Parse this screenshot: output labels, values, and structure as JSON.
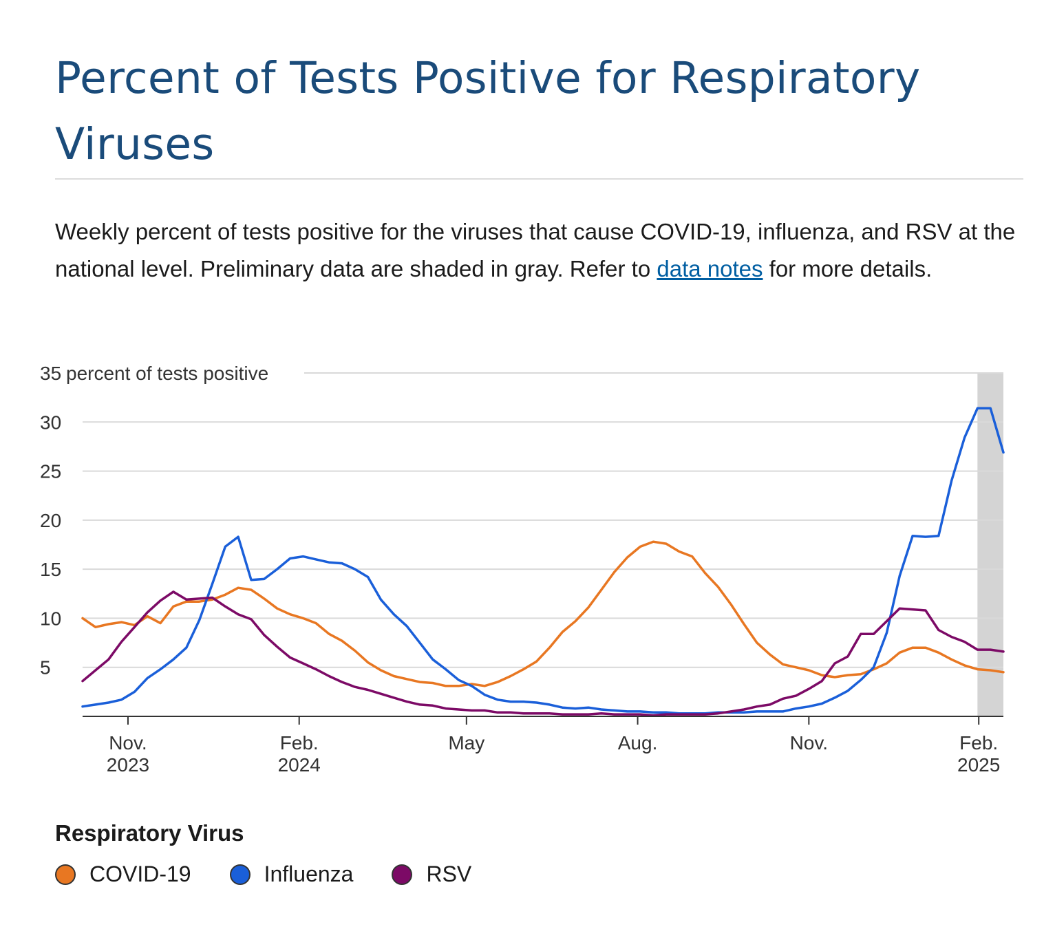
{
  "title": "Percent of Tests Positive for Respiratory Viruses",
  "description": {
    "before_link": "Weekly percent of tests positive for the viruses that cause COVID-19, influenza, and RSV at the national level. Preliminary data are shaded in gray. Refer to ",
    "link_text": "data notes",
    "after_link": " for more details."
  },
  "legend": {
    "title": "Respiratory Virus",
    "items": [
      {
        "label": "COVID-19",
        "color": "#e87722"
      },
      {
        "label": "Influenza",
        "color": "#1a5fd9"
      },
      {
        "label": "RSV",
        "color": "#7c0a66"
      }
    ]
  },
  "chart_data": {
    "type": "line",
    "ylabel": "percent of tests positive",
    "ylim": [
      0,
      35
    ],
    "y_ticks": [
      5,
      10,
      15,
      20,
      25,
      30,
      35
    ],
    "x_ticks": [
      {
        "week": 3.5,
        "label_month": "Nov.",
        "label_year": "2023"
      },
      {
        "week": 16.7,
        "label_month": "Feb.",
        "label_year": "2024"
      },
      {
        "week": 29.6,
        "label_month": "May",
        "label_year": ""
      },
      {
        "week": 42.8,
        "label_month": "Aug.",
        "label_year": ""
      },
      {
        "week": 56.0,
        "label_month": "Nov.",
        "label_year": ""
      },
      {
        "week": 69.1,
        "label_month": "Feb.",
        "label_year": "2025"
      }
    ],
    "x_domain": [
      0,
      71
    ],
    "preliminary_weeks": [
      69,
      71
    ],
    "grid": true,
    "series": [
      {
        "name": "COVID-19",
        "color": "#e87722",
        "values": [
          10.0,
          9.1,
          9.4,
          9.6,
          9.3,
          10.2,
          9.5,
          11.2,
          11.7,
          11.7,
          11.9,
          12.4,
          13.1,
          12.9,
          12.0,
          11.0,
          10.4,
          10.0,
          9.5,
          8.4,
          7.7,
          6.7,
          5.5,
          4.7,
          4.1,
          3.8,
          3.5,
          3.4,
          3.1,
          3.1,
          3.3,
          3.1,
          3.5,
          4.1,
          4.8,
          5.6,
          7.0,
          8.6,
          9.7,
          11.1,
          12.9,
          14.7,
          16.2,
          17.3,
          17.8,
          17.6,
          16.8,
          16.3,
          14.6,
          13.2,
          11.4,
          9.4,
          7.5,
          6.3,
          5.3,
          5.0,
          4.7,
          4.2,
          4.0,
          4.2,
          4.3,
          4.8,
          5.4,
          6.5,
          7.0,
          7.0,
          6.5,
          5.8,
          5.2,
          4.8,
          4.7,
          4.5
        ]
      },
      {
        "name": "Influenza",
        "color": "#1a5fd9",
        "values": [
          1.0,
          1.2,
          1.4,
          1.7,
          2.5,
          3.9,
          4.8,
          5.8,
          7.0,
          9.8,
          13.5,
          17.3,
          18.3,
          13.9,
          14.0,
          15.0,
          16.1,
          16.3,
          16.0,
          15.7,
          15.6,
          15.0,
          14.2,
          11.9,
          10.4,
          9.2,
          7.5,
          5.8,
          4.8,
          3.7,
          3.1,
          2.2,
          1.7,
          1.5,
          1.5,
          1.4,
          1.2,
          0.9,
          0.8,
          0.9,
          0.7,
          0.6,
          0.5,
          0.5,
          0.4,
          0.4,
          0.3,
          0.3,
          0.3,
          0.4,
          0.4,
          0.4,
          0.5,
          0.5,
          0.5,
          0.8,
          1.0,
          1.3,
          1.9,
          2.6,
          3.7,
          5.0,
          8.5,
          14.3,
          18.4,
          18.3,
          18.4,
          24.0,
          28.4,
          31.4,
          31.4,
          26.9
        ]
      },
      {
        "name": "RSV",
        "color": "#7c0a66",
        "values": [
          3.6,
          4.7,
          5.8,
          7.6,
          9.1,
          10.6,
          11.8,
          12.7,
          11.9,
          12.0,
          12.1,
          11.2,
          10.4,
          9.9,
          8.3,
          7.1,
          6.0,
          5.4,
          4.8,
          4.1,
          3.5,
          3.0,
          2.7,
          2.3,
          1.9,
          1.5,
          1.2,
          1.1,
          0.8,
          0.7,
          0.6,
          0.6,
          0.4,
          0.4,
          0.3,
          0.3,
          0.3,
          0.2,
          0.2,
          0.2,
          0.3,
          0.2,
          0.2,
          0.2,
          0.1,
          0.2,
          0.2,
          0.2,
          0.2,
          0.3,
          0.5,
          0.7,
          1.0,
          1.2,
          1.8,
          2.1,
          2.8,
          3.6,
          5.4,
          6.1,
          8.4,
          8.4,
          9.7,
          11.0,
          10.9,
          10.8,
          8.8,
          8.1,
          7.6,
          6.8,
          6.8,
          6.6
        ]
      }
    ]
  }
}
